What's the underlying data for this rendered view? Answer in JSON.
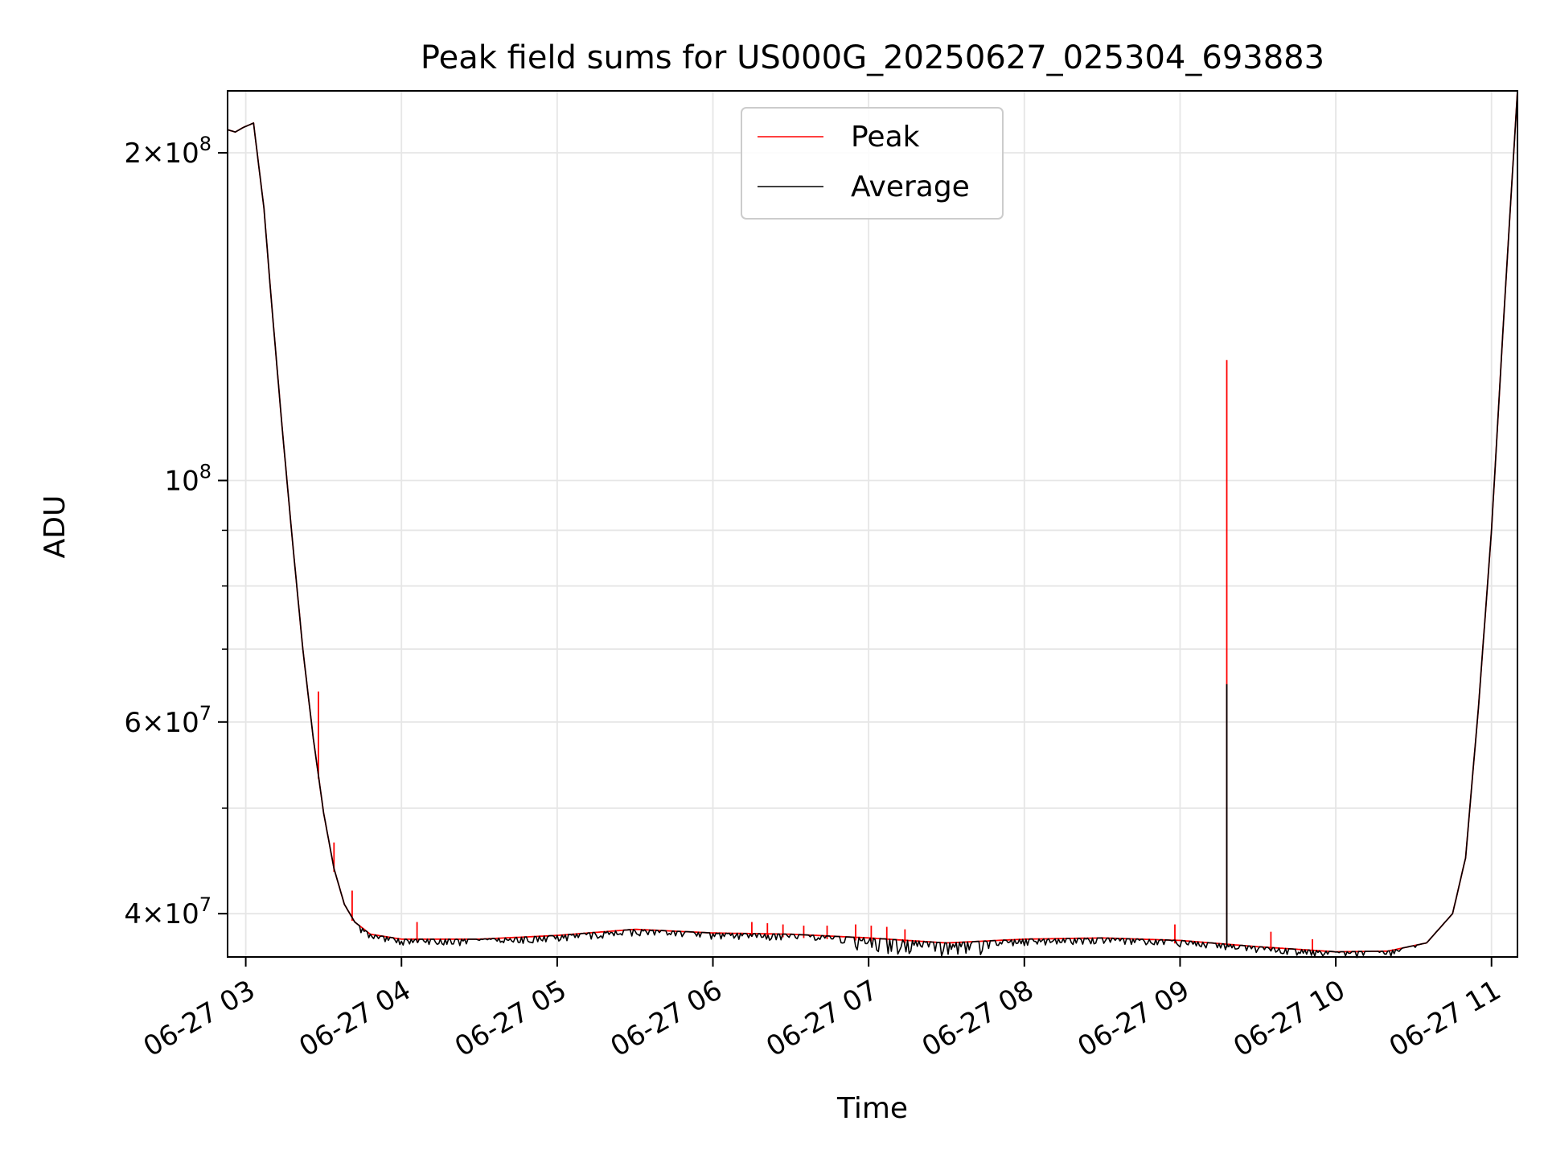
{
  "chart_data": {
    "type": "line",
    "title": "Peak field sums for US000G_20250627_025304_693883",
    "xlabel": "Time",
    "ylabel": "ADU",
    "yscale": "log",
    "xlim": [
      "06-27 02:53",
      "06-27 11:10"
    ],
    "ylim": [
      36500000,
      228000000
    ],
    "grid": true,
    "legend": "upper center",
    "x_ticks": [
      "06-27 03",
      "06-27 04",
      "06-27 05",
      "06-27 06",
      "06-27 07",
      "06-27 08",
      "06-27 09",
      "06-27 10",
      "06-27 11"
    ],
    "y_major_ticks": [
      {
        "value": 40000000,
        "mant": "4",
        "exp": "7"
      },
      {
        "value": 60000000,
        "mant": "6",
        "exp": "7"
      },
      {
        "value": 100000000,
        "mant": "",
        "exp": "8"
      },
      {
        "value": 200000000,
        "mant": "2",
        "exp": "8"
      }
    ],
    "y_minor_ticks": [
      50000000,
      70000000,
      80000000,
      90000000
    ],
    "colors": {
      "peak": "#ff0000",
      "average": "#000000",
      "grid": "#e6e6e6"
    },
    "series": [
      {
        "name": "Peak",
        "color": "#ff0000",
        "points": [
          [
            "06-27 02:53",
            210000000
          ],
          [
            "06-27 02:56",
            209000000
          ],
          [
            "06-27 02:59",
            211000000
          ],
          [
            "06-27 03:03",
            213000000
          ],
          [
            "06-27 03:07",
            178000000
          ],
          [
            "06-27 03:10",
            145000000
          ],
          [
            "06-27 03:14",
            112000000
          ],
          [
            "06-27 03:18",
            88000000
          ],
          [
            "06-27 03:22",
            70000000
          ],
          [
            "06-27 03:26",
            58000000
          ],
          [
            "06-27 03:30",
            49500000
          ],
          [
            "06-27 03:34",
            44000000
          ],
          [
            "06-27 03:38",
            40800000
          ],
          [
            "06-27 03:42",
            39300000
          ],
          [
            "06-27 03:48",
            38300000
          ],
          [
            "06-27 04:00",
            37900000
          ],
          [
            "06-27 04:30",
            37900000
          ],
          [
            "06-27 05:00",
            38200000
          ],
          [
            "06-27 05:30",
            38700000
          ],
          [
            "06-27 06:00",
            38400000
          ],
          [
            "06-27 06:30",
            38300000
          ],
          [
            "06-27 07:00",
            38000000
          ],
          [
            "06-27 07:30",
            37600000
          ],
          [
            "06-27 08:00",
            37900000
          ],
          [
            "06-27 08:30",
            38000000
          ],
          [
            "06-27 09:00",
            37800000
          ],
          [
            "06-27 09:30",
            37300000
          ],
          [
            "06-27 10:00",
            36900000
          ],
          [
            "06-27 10:20",
            36950000
          ],
          [
            "06-27 10:35",
            37600000
          ],
          [
            "06-27 10:45",
            40000000
          ],
          [
            "06-27 10:50",
            45000000
          ],
          [
            "06-27 10:55",
            62000000
          ],
          [
            "06-27 11:00",
            90000000
          ],
          [
            "06-27 11:05",
            145000000
          ],
          [
            "06-27 11:10",
            228000000
          ]
        ],
        "spikes": [
          [
            "06-27 03:28",
            64000000
          ],
          [
            "06-27 03:34",
            46500000
          ],
          [
            "06-27 03:41",
            42000000
          ],
          [
            "06-27 04:06",
            39300000
          ],
          [
            "06-27 06:15",
            39300000
          ],
          [
            "06-27 06:21",
            39200000
          ],
          [
            "06-27 06:27",
            39100000
          ],
          [
            "06-27 06:35",
            39000000
          ],
          [
            "06-27 06:44",
            39000000
          ],
          [
            "06-27 06:55",
            39100000
          ],
          [
            "06-27 07:01",
            39000000
          ],
          [
            "06-27 07:07",
            38900000
          ],
          [
            "06-27 07:14",
            38700000
          ],
          [
            "06-27 08:58",
            39100000
          ],
          [
            "06-27 09:18",
            129000000
          ],
          [
            "06-27 09:35",
            38500000
          ],
          [
            "06-27 09:51",
            37900000
          ]
        ]
      },
      {
        "name": "Average",
        "color": "#000000",
        "points": [
          [
            "06-27 02:53",
            210000000
          ],
          [
            "06-27 02:56",
            209000000
          ],
          [
            "06-27 02:59",
            211000000
          ],
          [
            "06-27 03:03",
            213000000
          ],
          [
            "06-27 03:07",
            178000000
          ],
          [
            "06-27 03:10",
            145000000
          ],
          [
            "06-27 03:14",
            112000000
          ],
          [
            "06-27 03:18",
            88000000
          ],
          [
            "06-27 03:22",
            70000000
          ],
          [
            "06-27 03:26",
            58000000
          ],
          [
            "06-27 03:30",
            49500000
          ],
          [
            "06-27 03:34",
            44000000
          ],
          [
            "06-27 03:38",
            40800000
          ],
          [
            "06-27 03:42",
            39300000
          ],
          [
            "06-27 03:48",
            38300000
          ],
          [
            "06-27 04:00",
            37900000
          ],
          [
            "06-27 04:30",
            37900000
          ],
          [
            "06-27 05:00",
            38200000
          ],
          [
            "06-27 05:30",
            38700000
          ],
          [
            "06-27 06:00",
            38400000
          ],
          [
            "06-27 06:30",
            38300000
          ],
          [
            "06-27 07:00",
            38000000
          ],
          [
            "06-27 07:30",
            37600000
          ],
          [
            "06-27 08:00",
            37900000
          ],
          [
            "06-27 08:30",
            38000000
          ],
          [
            "06-27 09:00",
            37800000
          ],
          [
            "06-27 09:30",
            37300000
          ],
          [
            "06-27 10:00",
            36900000
          ],
          [
            "06-27 10:20",
            36950000
          ],
          [
            "06-27 10:35",
            37600000
          ],
          [
            "06-27 10:45",
            40000000
          ],
          [
            "06-27 10:50",
            45000000
          ],
          [
            "06-27 10:55",
            62000000
          ],
          [
            "06-27 11:00",
            90000000
          ],
          [
            "06-27 11:05",
            145000000
          ],
          [
            "06-27 11:10",
            228000000
          ]
        ],
        "spikes": [
          [
            "06-27 09:18",
            65000000
          ]
        ]
      }
    ]
  }
}
